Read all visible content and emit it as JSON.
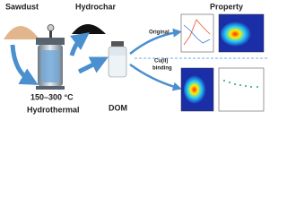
{
  "labels": {
    "sawdust": "Sawdust",
    "hydrochar": "Hydrochar",
    "property": "Property",
    "original": "Original",
    "binding": [
      "Cu(II)",
      "binding"
    ],
    "temperature": "150–300 °C",
    "hydrothermal": "Hydrothermal",
    "dom": "DOM"
  }
}
